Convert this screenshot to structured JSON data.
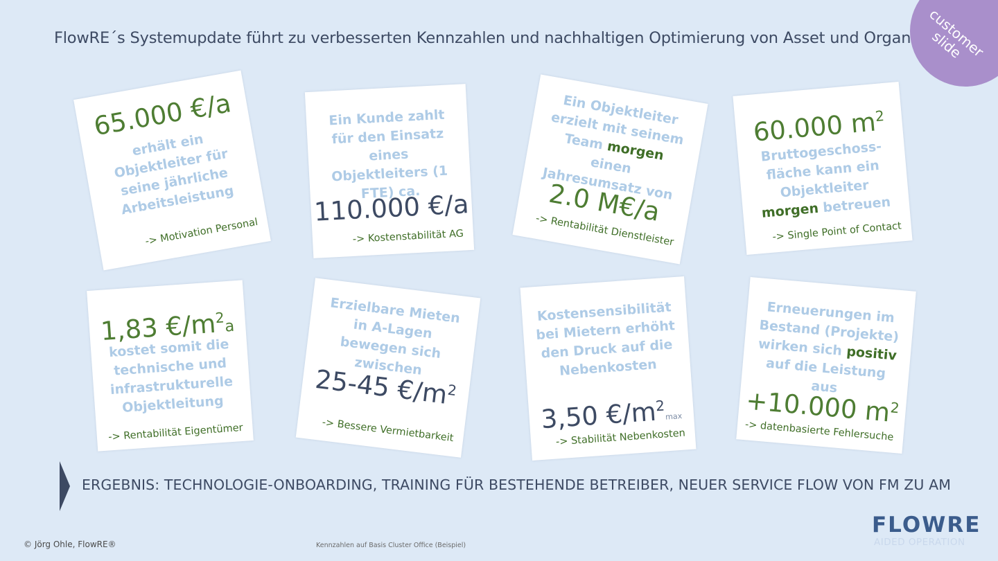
{
  "title": "FlowRE´s Systemupdate führt zu verbesserten Kennzahlen und nachhaltigen Optimierung von Asset und Organisation",
  "badge": {
    "line1": "customer",
    "line2": "slide"
  },
  "cards": [
    {
      "value": "65.000 €/a",
      "text": "erhält ein Objektleiter für seine jährliche Arbeitsleistung",
      "footer": "-> Motivation Personal"
    },
    {
      "text": "Ein Kunde zahlt für den Einsatz eines Objektleiters (1 FTE) ca.",
      "value": "110.000 €/a",
      "footer": "-> Kostenstabilität AG"
    },
    {
      "text_a": "Ein Objektleiter erzielt mit seinem Team",
      "highlight": "morgen",
      "text_b": "einen Jahresumsatz von",
      "value": "2.0 M€/a",
      "footer": "-> Rentabilität Dienstleister"
    },
    {
      "value": "60.000 m",
      "value_sup": "2",
      "text_a": "Bruttogeschoss-fläche kann ein Objektleiter",
      "highlight": "morgen",
      "text_b": "betreuen",
      "footer": "-> Single Point of Contact"
    },
    {
      "value": "1,83 €/m",
      "value_sup": "2",
      "value_sub": "a",
      "text": "kostet somit die technische und infrastrukturelle Objektleitung",
      "footer": "-> Rentabilität Eigentümer"
    },
    {
      "text": "Erzielbare Mieten in A-Lagen bewegen sich zwischen",
      "value": "25-45 €/m",
      "value_sup": "2",
      "footer": "-> Bessere Vermietbarkeit"
    },
    {
      "text": "Kostensensibilität bei Mietern erhöht den Druck auf die Nebenkosten",
      "value": "3,50 €/m",
      "value_sup": "2",
      "value_sub": "max",
      "footer": "-> Stabilität Nebenkosten"
    },
    {
      "text_a": "Erneuerungen im Bestand (Projekte) wirken sich",
      "highlight": "positiv",
      "text_b": "auf die Leistung aus",
      "value": "+10.000 m",
      "value_sup": "2",
      "footer": "-> datenbasierte Fehlersuche"
    }
  ],
  "result": "ERGEBNIS: TECHNOLOGIE-ONBOARDING, TRAINING FÜR BESTEHENDE BETREIBER, NEUER SERVICE FLOW VON FM ZU AM",
  "copyright": "© Jörg Ohle, FlowRE®",
  "footnote": "Kennzahlen auf Basis Cluster Office (Beispiel)",
  "logo": {
    "name": "FLOWRE",
    "tagline": "AIDED OPERATION"
  },
  "colors": {
    "background": "#dde9f6",
    "accent_green": "#4e7d33",
    "dark_text": "#3d4a63",
    "badge": "#a98fcb"
  }
}
